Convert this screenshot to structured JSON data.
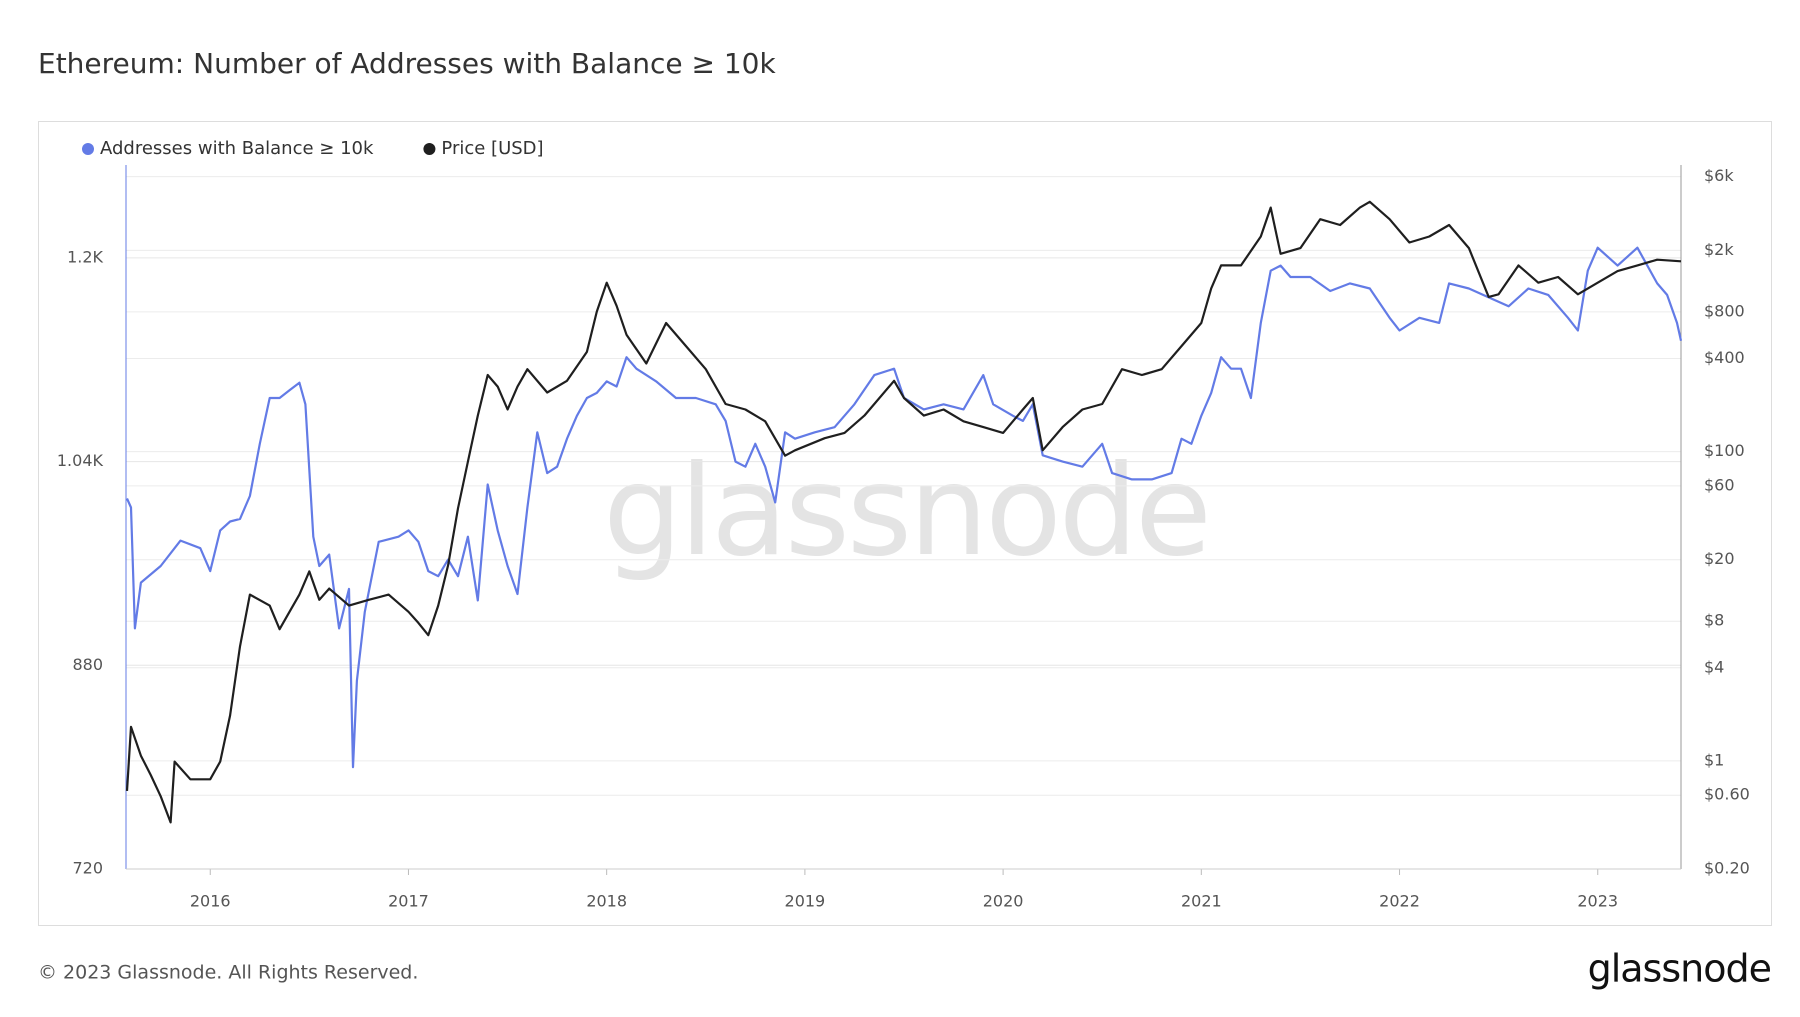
{
  "chart_data": {
    "type": "line",
    "title": "Ethereum: Number of Addresses with Balance ≥ 10k",
    "watermark": "glassnode",
    "copyright": "© 2023 Glassnode. All Rights Reserved.",
    "logo": "glassnode",
    "xlim": [
      2015.575,
      2023.42
    ],
    "xticks": [
      2016,
      2017,
      2018,
      2019,
      2020,
      2021,
      2022,
      2023
    ],
    "ylim": [
      720,
      1273
    ],
    "yticks": [
      720,
      880,
      {
        "value": 1040,
        "label": "1.04K"
      },
      {
        "value": 1200,
        "label": "1.2K"
      }
    ],
    "y2lim": [
      0.2,
      7130
    ],
    "y2log": true,
    "y2ticks": [
      {
        "value": 0.2,
        "label": "$0.20"
      },
      {
        "value": 0.6,
        "label": "$0.60"
      },
      {
        "value": 1,
        "label": "$1"
      },
      {
        "value": 4,
        "label": "$4"
      },
      {
        "value": 8,
        "label": "$8"
      },
      {
        "value": 20,
        "label": "$20"
      },
      {
        "value": 60,
        "label": "$60"
      },
      {
        "value": 100,
        "label": "$100"
      },
      {
        "value": 400,
        "label": "$400"
      },
      {
        "value": 800,
        "label": "$800"
      },
      {
        "value": 2000,
        "label": "$2k"
      },
      {
        "value": 6000,
        "label": "$6k"
      }
    ],
    "grid": true,
    "legend": "top-left",
    "series": [
      {
        "name": "Addresses with Balance ≥ 10k",
        "color": "#637be6",
        "x": [
          2015.58,
          2015.6,
          2015.62,
          2015.65,
          2015.75,
          2015.85,
          2015.95,
          2016.0,
          2016.05,
          2016.1,
          2016.15,
          2016.2,
          2016.25,
          2016.3,
          2016.35,
          2016.4,
          2016.45,
          2016.48,
          2016.52,
          2016.55,
          2016.6,
          2016.65,
          2016.7,
          2016.72,
          2016.74,
          2016.78,
          2016.85,
          2016.95,
          2017.0,
          2017.05,
          2017.1,
          2017.15,
          2017.2,
          2017.25,
          2017.3,
          2017.35,
          2017.4,
          2017.45,
          2017.5,
          2017.55,
          2017.6,
          2017.65,
          2017.7,
          2017.75,
          2017.8,
          2017.85,
          2017.9,
          2017.95,
          2018.0,
          2018.05,
          2018.1,
          2018.15,
          2018.25,
          2018.35,
          2018.45,
          2018.55,
          2018.6,
          2018.65,
          2018.7,
          2018.75,
          2018.8,
          2018.85,
          2018.9,
          2018.95,
          2019.05,
          2019.15,
          2019.25,
          2019.35,
          2019.45,
          2019.5,
          2019.6,
          2019.7,
          2019.8,
          2019.9,
          2019.95,
          2020.05,
          2020.1,
          2020.15,
          2020.2,
          2020.3,
          2020.4,
          2020.5,
          2020.55,
          2020.65,
          2020.75,
          2020.85,
          2020.9,
          2020.95,
          2021.0,
          2021.05,
          2021.1,
          2021.15,
          2021.2,
          2021.25,
          2021.3,
          2021.35,
          2021.4,
          2021.45,
          2021.55,
          2021.65,
          2021.75,
          2021.85,
          2021.95,
          2022.0,
          2022.1,
          2022.2,
          2022.25,
          2022.35,
          2022.45,
          2022.55,
          2022.65,
          2022.75,
          2022.85,
          2022.9,
          2022.95,
          2023.0,
          2023.1,
          2023.2,
          2023.3,
          2023.35,
          2023.4,
          2023.42
        ],
        "values": [
          1011,
          1004,
          909,
          945,
          958,
          978,
          972,
          954,
          986,
          993,
          995,
          1013,
          1054,
          1090,
          1090,
          1096,
          1102,
          1085,
          981,
          958,
          967,
          909,
          940,
          800,
          868,
          922,
          977,
          981,
          986,
          977,
          954,
          950,
          963,
          950,
          981,
          931,
          1022,
          986,
          958,
          936,
          1004,
          1063,
          1031,
          1036,
          1058,
          1076,
          1090,
          1094,
          1103,
          1099,
          1122,
          1113,
          1103,
          1090,
          1090,
          1085,
          1072,
          1040,
          1036,
          1054,
          1036,
          1008,
          1063,
          1058,
          1063,
          1067,
          1085,
          1108,
          1113,
          1090,
          1081,
          1085,
          1081,
          1108,
          1085,
          1076,
          1072,
          1085,
          1045,
          1040,
          1036,
          1054,
          1031,
          1026,
          1026,
          1031,
          1058,
          1054,
          1076,
          1094,
          1122,
          1113,
          1113,
          1090,
          1149,
          1190,
          1194,
          1185,
          1185,
          1174,
          1180,
          1176,
          1153,
          1143,
          1153,
          1149,
          1180,
          1176,
          1169,
          1162,
          1176,
          1171,
          1153,
          1143,
          1190,
          1208,
          1194,
          1208,
          1180,
          1171,
          1149,
          1135
        ]
      },
      {
        "name": "Price [USD]",
        "color": "#1f1f1f",
        "axis": "y2",
        "x": [
          2015.58,
          2015.6,
          2015.65,
          2015.7,
          2015.75,
          2015.8,
          2015.82,
          2015.9,
          2016.0,
          2016.05,
          2016.1,
          2016.15,
          2016.2,
          2016.3,
          2016.35,
          2016.4,
          2016.45,
          2016.5,
          2016.55,
          2016.6,
          2016.7,
          2016.8,
          2016.9,
          2017.0,
          2017.05,
          2017.1,
          2017.15,
          2017.2,
          2017.25,
          2017.3,
          2017.35,
          2017.4,
          2017.45,
          2017.5,
          2017.55,
          2017.6,
          2017.7,
          2017.8,
          2017.9,
          2017.95,
          2018.0,
          2018.05,
          2018.1,
          2018.2,
          2018.3,
          2018.4,
          2018.5,
          2018.6,
          2018.7,
          2018.8,
          2018.9,
          2018.95,
          2019.1,
          2019.2,
          2019.3,
          2019.45,
          2019.5,
          2019.6,
          2019.7,
          2019.8,
          2019.9,
          2020.0,
          2020.1,
          2020.15,
          2020.2,
          2020.3,
          2020.4,
          2020.5,
          2020.6,
          2020.7,
          2020.8,
          2020.9,
          2021.0,
          2021.05,
          2021.1,
          2021.2,
          2021.3,
          2021.35,
          2021.4,
          2021.5,
          2021.6,
          2021.7,
          2021.8,
          2021.85,
          2021.95,
          2022.05,
          2022.15,
          2022.25,
          2022.35,
          2022.45,
          2022.5,
          2022.6,
          2022.7,
          2022.8,
          2022.9,
          2023.0,
          2023.1,
          2023.2,
          2023.3,
          2023.42
        ],
        "values": [
          0.64,
          1.66,
          1.08,
          0.81,
          0.59,
          0.4,
          0.99,
          0.76,
          0.76,
          0.99,
          1.97,
          5.5,
          11.9,
          10.1,
          7.1,
          9.2,
          11.9,
          16.8,
          11.0,
          13.0,
          10.1,
          11.0,
          11.9,
          9.2,
          7.8,
          6.5,
          10.1,
          18.4,
          43,
          86,
          171,
          313,
          263,
          187,
          263,
          341,
          241,
          287,
          441,
          804,
          1236,
          877,
          570,
          371,
          678,
          481,
          341,
          203,
          187,
          157,
          94,
          102,
          122,
          132,
          171,
          287,
          222,
          171,
          187,
          157,
          144,
          132,
          187,
          222,
          102,
          144,
          187,
          203,
          341,
          313,
          341,
          481,
          678,
          1135,
          1600,
          1600,
          2460,
          3780,
          1900,
          2070,
          3180,
          2920,
          3780,
          4120,
          3180,
          2250,
          2460,
          2920,
          2070,
          1000,
          1040,
          1600,
          1236,
          1345,
          1040,
          1236,
          1470,
          1600,
          1740,
          1700
        ]
      }
    ]
  }
}
